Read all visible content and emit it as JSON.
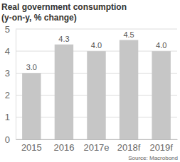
{
  "chart_data": {
    "type": "bar",
    "title": "Real government consumption",
    "subtitle": "(y-on-y, % change)",
    "categories": [
      "2015",
      "2016",
      "2017e",
      "2018f",
      "2019f"
    ],
    "values": [
      3.0,
      4.3,
      4.0,
      4.5,
      4.0
    ],
    "value_labels": [
      "3.0",
      "4.3",
      "4.0",
      "4.5",
      "4.0"
    ],
    "color": "#c6c6c6",
    "ylim": [
      0,
      5
    ],
    "yticks": [
      0,
      1,
      2,
      3,
      4,
      5
    ],
    "grid": true,
    "data_labels": true,
    "source": "Source: Macrobond"
  }
}
